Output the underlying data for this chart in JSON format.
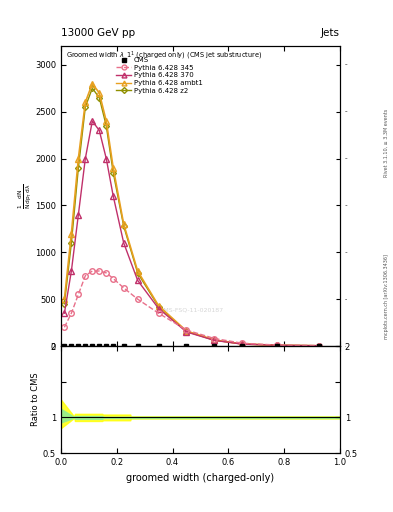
{
  "title_top": "13000 GeV pp",
  "title_right": "Jets",
  "xlabel": "groomed width (charged-only)",
  "ylabel_ratio": "Ratio to CMS",
  "right_label": "Rivet 3.1.10, ≥ 3.3M events",
  "arxiv_label": "mcplots.cern.ch [arXiv:1306.3436]",
  "watermark": "CMS-FSQ-11-020187",
  "p345_x": [
    0.0125,
    0.0375,
    0.0625,
    0.0875,
    0.1125,
    0.1375,
    0.1625,
    0.1875,
    0.225,
    0.275,
    0.35,
    0.45,
    0.55,
    0.65,
    0.775,
    0.925
  ],
  "p345_y": [
    200,
    350,
    550,
    750,
    800,
    800,
    780,
    720,
    620,
    500,
    350,
    170,
    80,
    30,
    10,
    5
  ],
  "p370_x": [
    0.0125,
    0.0375,
    0.0625,
    0.0875,
    0.1125,
    0.1375,
    0.1625,
    0.1875,
    0.225,
    0.275,
    0.35,
    0.45,
    0.55,
    0.65,
    0.775,
    0.925
  ],
  "p370_y": [
    350,
    800,
    1400,
    2000,
    2400,
    2300,
    2000,
    1600,
    1100,
    700,
    400,
    150,
    60,
    20,
    8,
    3
  ],
  "pambt1_x": [
    0.0125,
    0.0375,
    0.0625,
    0.0875,
    0.1125,
    0.1375,
    0.1625,
    0.1875,
    0.225,
    0.275,
    0.35,
    0.45,
    0.55,
    0.65,
    0.775,
    0.925
  ],
  "pambt1_y": [
    500,
    1200,
    2000,
    2600,
    2800,
    2700,
    2400,
    1900,
    1300,
    800,
    430,
    160,
    65,
    22,
    8,
    3
  ],
  "pz2_x": [
    0.0125,
    0.0375,
    0.0625,
    0.0875,
    0.1125,
    0.1375,
    0.1625,
    0.1875,
    0.225,
    0.275,
    0.35,
    0.45,
    0.55,
    0.65,
    0.775,
    0.925
  ],
  "pz2_y": [
    450,
    1100,
    1900,
    2550,
    2750,
    2650,
    2350,
    1850,
    1280,
    780,
    420,
    155,
    62,
    21,
    8,
    3
  ],
  "cms_x": [
    0.0125,
    0.0375,
    0.0625,
    0.0875,
    0.1125,
    0.1375,
    0.1625,
    0.1875,
    0.225,
    0.275,
    0.35,
    0.45,
    0.55,
    0.65,
    0.775,
    0.925
  ],
  "color_345": "#e8708a",
  "color_370": "#c0306a",
  "color_ambt1": "#e8a020",
  "color_z2": "#909000",
  "ratio_ylim": [
    0.5,
    2.0
  ],
  "main_ylim": [
    0,
    3200
  ],
  "xlim": [
    0,
    1.0
  ]
}
